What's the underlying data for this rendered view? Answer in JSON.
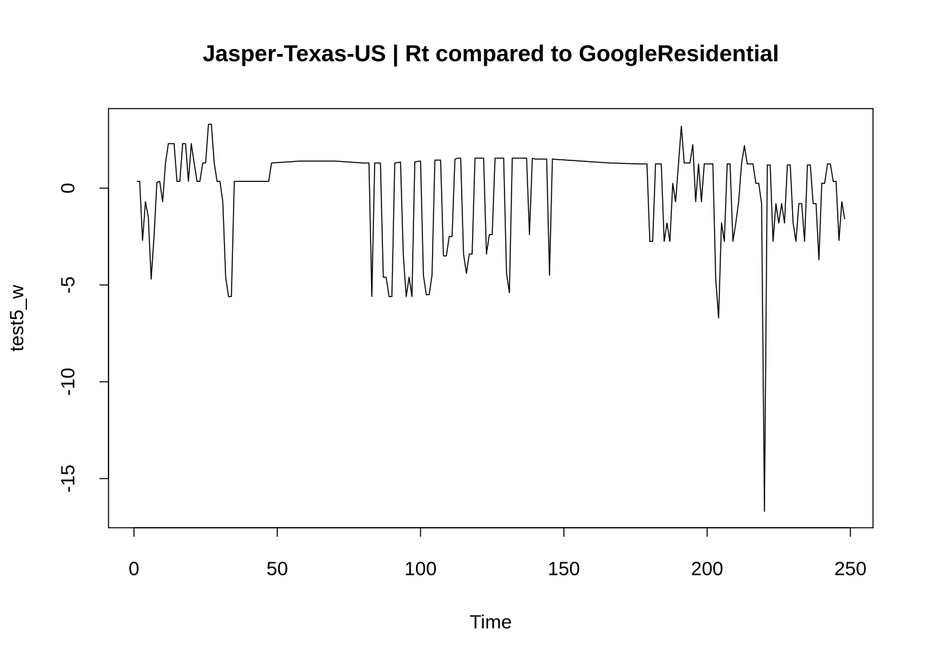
{
  "chart_data": {
    "type": "line",
    "title": "Jasper-Texas-US | Rt compared to GoogleResidential",
    "x_label": "Time",
    "y_label": "test5_w",
    "x": [
      1,
      2,
      3,
      4,
      5,
      6,
      7,
      8,
      9,
      10,
      11,
      12,
      13,
      14,
      15,
      16,
      17,
      18,
      19,
      20,
      21,
      22,
      23,
      24,
      25,
      26,
      27,
      28,
      29,
      30,
      31,
      32,
      33,
      34,
      35,
      36,
      37,
      38,
      39,
      40,
      41,
      42,
      43,
      44,
      45,
      46,
      47,
      48,
      49,
      50,
      51,
      52,
      53,
      54,
      55,
      56,
      57,
      58,
      59,
      60,
      61,
      62,
      63,
      64,
      65,
      66,
      67,
      68,
      69,
      70,
      71,
      72,
      73,
      74,
      75,
      76,
      77,
      78,
      79,
      80,
      81,
      82,
      83,
      84,
      85,
      86,
      87,
      88,
      89,
      90,
      91,
      92,
      93,
      94,
      95,
      96,
      97,
      98,
      99,
      100,
      101,
      102,
      103,
      104,
      105,
      106,
      107,
      108,
      109,
      110,
      111,
      112,
      113,
      114,
      115,
      116,
      117,
      118,
      119,
      120,
      121,
      122,
      123,
      124,
      125,
      126,
      127,
      128,
      129,
      130,
      131,
      132,
      133,
      134,
      135,
      136,
      137,
      138,
      139,
      140,
      141,
      142,
      143,
      144,
      145,
      146,
      147,
      148,
      149,
      150,
      151,
      152,
      153,
      154,
      155,
      156,
      157,
      158,
      159,
      160,
      161,
      162,
      163,
      164,
      165,
      166,
      167,
      168,
      169,
      170,
      171,
      172,
      173,
      174,
      175,
      176,
      177,
      178,
      179,
      180,
      181,
      182,
      183,
      184,
      185,
      186,
      187,
      188,
      189,
      190,
      191,
      192,
      193,
      194,
      195,
      196,
      197,
      198,
      199,
      200,
      201,
      202,
      203,
      204,
      205,
      206,
      207,
      208,
      209,
      210,
      211,
      212,
      213,
      214,
      215,
      216,
      217,
      218,
      219,
      220,
      221,
      222,
      223,
      224,
      225,
      226,
      227,
      228,
      229,
      230,
      231,
      232,
      233,
      234,
      235,
      236,
      237,
      238,
      239,
      240,
      241,
      242,
      243,
      244,
      245,
      246,
      247,
      248
    ],
    "series": [
      {
        "name": "test5_w",
        "color": "#000000",
        "values": [
          0.35,
          0.35,
          -2.7,
          -0.7,
          -1.5,
          -4.7,
          -2.5,
          0.3,
          0.35,
          -0.7,
          1.3,
          2.3,
          2.3,
          2.3,
          0.35,
          0.35,
          2.3,
          2.3,
          0.35,
          2.3,
          1.3,
          0.35,
          0.35,
          1.3,
          1.3,
          3.3,
          3.3,
          1.3,
          0.35,
          0.35,
          -0.7,
          -4.6,
          -5.6,
          -5.6,
          0.35,
          0.35,
          0.35,
          0.35,
          0.35,
          0.35,
          0.35,
          0.35,
          0.35,
          0.35,
          0.35,
          0.35,
          0.35,
          1.3,
          1.31,
          1.32,
          1.33,
          1.34,
          1.35,
          1.36,
          1.37,
          1.38,
          1.39,
          1.4,
          1.4,
          1.4,
          1.4,
          1.4,
          1.4,
          1.4,
          1.4,
          1.4,
          1.4,
          1.4,
          1.4,
          1.4,
          1.39,
          1.38,
          1.37,
          1.36,
          1.35,
          1.34,
          1.33,
          1.32,
          1.31,
          1.3,
          1.3,
          1.3,
          -5.6,
          1.3,
          1.3,
          1.3,
          -4.6,
          -4.6,
          -5.6,
          -5.6,
          1.3,
          1.32,
          1.35,
          -3.5,
          -5.6,
          -4.6,
          -5.6,
          1.35,
          1.38,
          1.4,
          -4.5,
          -5.5,
          -5.5,
          -4.5,
          1.45,
          1.45,
          1.45,
          -3.5,
          -3.5,
          -2.5,
          -2.5,
          1.5,
          1.55,
          1.55,
          -3.4,
          -4.4,
          -3.4,
          -3.4,
          1.55,
          1.55,
          1.55,
          1.55,
          -3.4,
          -2.4,
          -2.4,
          1.55,
          1.55,
          1.55,
          1.55,
          -4.4,
          -5.4,
          1.55,
          1.55,
          1.55,
          1.55,
          1.55,
          1.55,
          -2.4,
          1.55,
          1.5,
          1.5,
          1.5,
          1.5,
          1.5,
          -4.5,
          1.5,
          1.49,
          1.48,
          1.47,
          1.46,
          1.45,
          1.44,
          1.43,
          1.42,
          1.41,
          1.4,
          1.39,
          1.38,
          1.37,
          1.36,
          1.35,
          1.34,
          1.33,
          1.32,
          1.31,
          1.3,
          1.3,
          1.29,
          1.29,
          1.28,
          1.28,
          1.27,
          1.27,
          1.26,
          1.26,
          1.25,
          1.25,
          1.25,
          1.25,
          -2.75,
          -2.75,
          1.25,
          1.25,
          1.25,
          -2.75,
          -1.8,
          -2.75,
          0.25,
          -0.7,
          1.25,
          3.2,
          1.3,
          1.3,
          1.3,
          2.25,
          -0.7,
          1.25,
          -0.7,
          1.25,
          1.25,
          1.25,
          1.25,
          -4.7,
          -6.7,
          -1.8,
          -2.75,
          1.25,
          1.25,
          -2.75,
          -1.8,
          -0.7,
          1.25,
          2.2,
          1.25,
          1.25,
          1.25,
          0.25,
          0.25,
          -0.8,
          -16.7,
          1.2,
          1.2,
          -2.75,
          -0.8,
          -1.8,
          -0.8,
          -1.8,
          1.2,
          1.2,
          -1.8,
          -2.75,
          -0.8,
          -0.8,
          -2.75,
          1.2,
          1.2,
          -0.8,
          -0.8,
          -3.7,
          0.25,
          0.25,
          1.25,
          1.25,
          0.35,
          0.35,
          -2.7,
          -0.7,
          -1.6
        ]
      }
    ],
    "xlim": [
      -8.88,
      257.88
    ],
    "xticks": [
      0,
      50,
      100,
      150,
      200,
      250
    ],
    "ylim": [
      -17.54,
      4.11
    ],
    "yticks": [
      -15,
      -10,
      -5,
      0
    ],
    "grid": false
  }
}
